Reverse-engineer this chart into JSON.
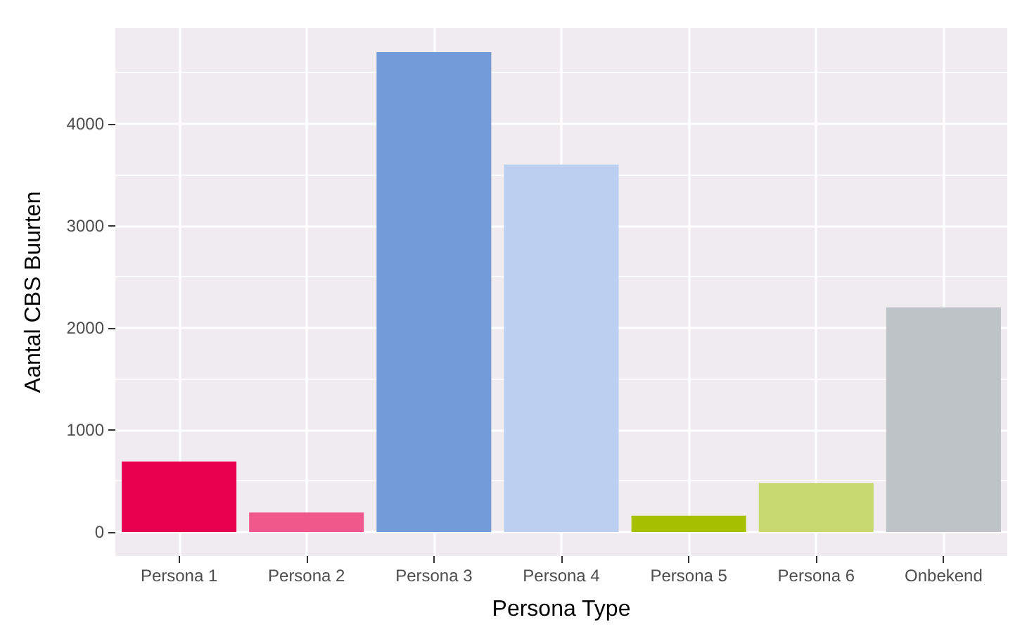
{
  "chart_data": {
    "type": "bar",
    "xlabel": "Persona Type",
    "ylabel": "Aantal CBS Buurten",
    "categories": [
      "Persona 1",
      "Persona 2",
      "Persona 3",
      "Persona 4",
      "Persona 5",
      "Persona 6",
      "Onbekend"
    ],
    "values": [
      690,
      190,
      4700,
      3600,
      160,
      480,
      2200
    ],
    "colors": [
      "#e6004e",
      "#f0578a",
      "#739bd8",
      "#bccff0",
      "#a7c000",
      "#c7d870",
      "#bec3c7"
    ],
    "ylim": [
      -235,
      4935
    ],
    "yticks": [
      0,
      1000,
      2000,
      3000,
      4000
    ],
    "grid": true
  }
}
